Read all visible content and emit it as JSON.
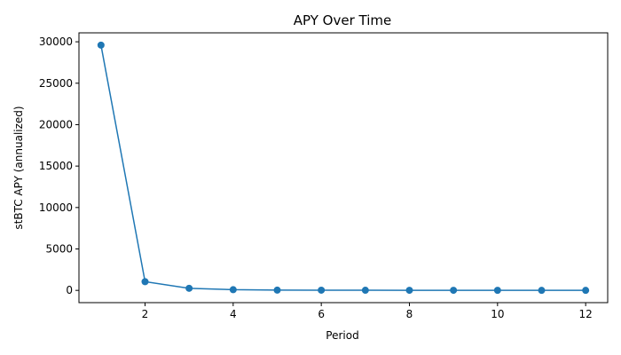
{
  "chart_data": {
    "type": "line",
    "title": "APY Over Time",
    "xlabel": "Period",
    "ylabel": "stBTC APY (annualized)",
    "xlim": [
      0.5,
      12.5
    ],
    "ylim": [
      -1480,
      31080
    ],
    "x_ticks": [
      2,
      4,
      6,
      8,
      10,
      12
    ],
    "y_ticks": [
      0,
      5000,
      10000,
      15000,
      20000,
      25000,
      30000
    ],
    "grid": false,
    "marker": "circle",
    "series": [
      {
        "color": "#1f77b4",
        "x": [
          1,
          2,
          3,
          4,
          5,
          6,
          7,
          8,
          9,
          10,
          11,
          12
        ],
        "y": [
          29600,
          1050,
          250,
          80,
          30,
          25,
          15,
          10,
          8,
          5,
          4,
          3
        ]
      }
    ]
  }
}
